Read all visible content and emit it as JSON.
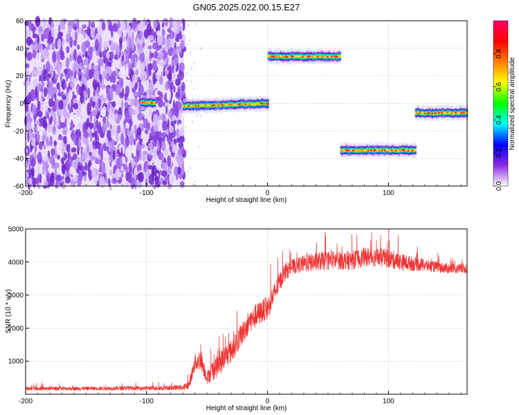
{
  "figure": {
    "title": "GN05.2025.022.00.15.E27"
  },
  "chart_data": [
    {
      "type": "heatmap",
      "xlabel": "Height of straight line (km)",
      "ylabel": "Frequency (Hz)",
      "xlim": [
        -200,
        165
      ],
      "ylim": [
        -60,
        60
      ],
      "xticks": [
        -200,
        -100,
        0,
        100
      ],
      "yticks": [
        -60,
        -40,
        -20,
        0,
        20,
        40,
        60
      ],
      "grid": true,
      "grid_style": "dotted",
      "noise_region": {
        "x": [
          -200,
          -69
        ],
        "y": [
          -60,
          60
        ]
      },
      "tracks": [
        {
          "x": [
            -105,
            -93
          ],
          "y": 0.5
        },
        {
          "x": [
            -70,
            0
          ],
          "y": -2,
          "end_y": 0
        },
        {
          "x": [
            0,
            60
          ],
          "y": 34
        },
        {
          "x": [
            60,
            122
          ],
          "y": -34
        },
        {
          "x": [
            122,
            165
          ],
          "y": -7
        }
      ],
      "colorbar": {
        "label": "Normalized spectral amplitude",
        "range": [
          0.0,
          1.0
        ],
        "ticks": [
          "0.0",
          "0.2",
          "0.4",
          "0.6",
          "0.8"
        ],
        "colors": [
          "#ffffff",
          "#8a2be2",
          "#0000ff",
          "#00ffff",
          "#00ff00",
          "#ffff00",
          "#ff8000",
          "#ff0000",
          "#ff0066"
        ]
      }
    },
    {
      "type": "line",
      "xlabel": "Height of straight line (km)",
      "ylabel": "SNR (10 * v/v)",
      "xlim": [
        -200,
        165
      ],
      "ylim": [
        0,
        5000
      ],
      "xticks": [
        -200,
        -100,
        0,
        100
      ],
      "yticks": [
        1000,
        2000,
        3000,
        4000,
        5000
      ],
      "grid": true,
      "grid_style": "dotted",
      "color": "#ee3333",
      "series": [
        {
          "x": [
            -200,
            -150,
            -100,
            -70,
            -65,
            -60,
            -55,
            -50,
            -45,
            -40,
            -35,
            -30,
            -25,
            -20,
            -15,
            -10,
            -5,
            0,
            5,
            10,
            15,
            20,
            30,
            40,
            50,
            60,
            70,
            80,
            90,
            100,
            110,
            120,
            130,
            140,
            150,
            165
          ],
          "values": [
            170,
            175,
            185,
            200,
            280,
            950,
            1050,
            500,
            750,
            900,
            1150,
            1300,
            1600,
            1900,
            2200,
            2350,
            2500,
            2600,
            3000,
            3400,
            3700,
            3850,
            3950,
            4000,
            4050,
            4050,
            4050,
            4150,
            4150,
            4100,
            4000,
            3950,
            3900,
            3850,
            3800,
            3800
          ],
          "spread": [
            90,
            90,
            100,
            120,
            200,
            400,
            500,
            300,
            500,
            550,
            550,
            550,
            550,
            550,
            550,
            550,
            550,
            550,
            500,
            450,
            400,
            350,
            400,
            450,
            450,
            450,
            450,
            450,
            450,
            450,
            400,
            350,
            300,
            250,
            250,
            250
          ]
        }
      ]
    }
  ]
}
